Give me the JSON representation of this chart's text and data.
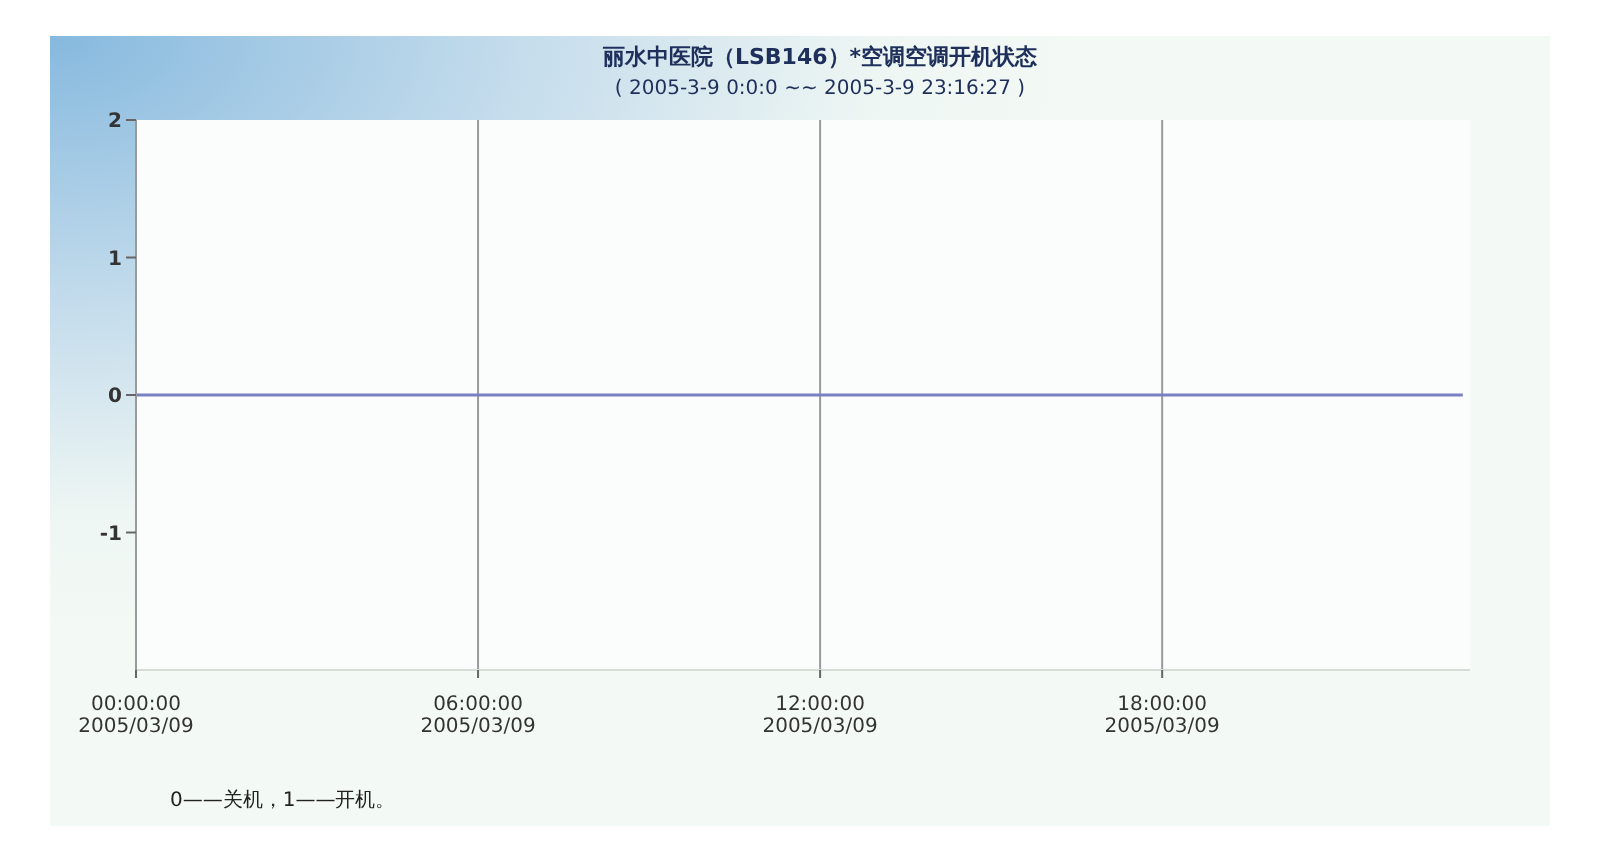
{
  "chart_data": {
    "type": "line",
    "title": "丽水中医院（LSB146）*空调空调开机状态",
    "subtitle": "( 2005-3-9 0:0:0 ~~ 2005-3-9 23:16:27 )",
    "annotations": [
      "0——关机，1——开机。"
    ],
    "x": [
      "2005-03-09T00:00",
      "2005-03-09T23:16:27"
    ],
    "values": [
      0,
      0
    ],
    "color": "#7b80c2",
    "xlim": [
      "2005-03-09T00:00",
      "2005-03-09T23:24"
    ],
    "xticks": [
      {
        "value": "2005-03-09T00:00",
        "label": "00:00:00\n2005/03/09"
      },
      {
        "value": "2005-03-09T06:00",
        "label": "06:00:00\n2005/03/09"
      },
      {
        "value": "2005-03-09T12:00",
        "label": "12:00:00\n2005/03/09"
      },
      {
        "value": "2005-03-09T18:00",
        "label": "18:00:00\n2005/03/09"
      }
    ],
    "ylim": [
      -2,
      2
    ],
    "yticks": [
      2,
      1,
      0,
      -1
    ],
    "grid": "x"
  }
}
